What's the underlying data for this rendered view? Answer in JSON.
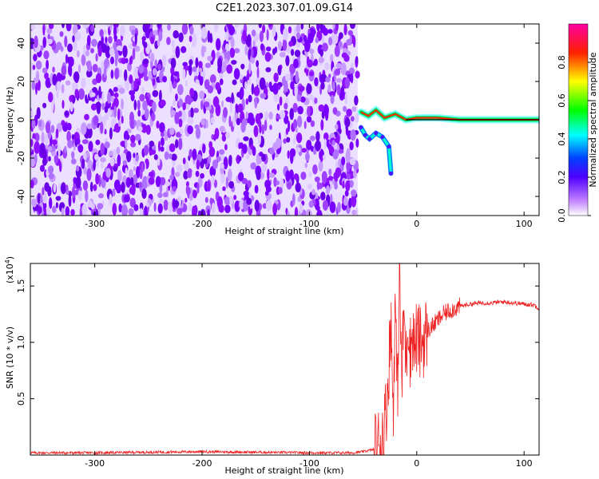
{
  "title": "C2E1.2023.307.01.09.G14",
  "chart_data": [
    {
      "type": "heatmap",
      "xlabel": "Height of straight line (km)",
      "ylabel": "Frequency (Hz)",
      "xlim": [
        -360,
        114
      ],
      "ylim": [
        -50,
        50
      ],
      "xticks": [
        -300,
        -200,
        -100,
        0,
        100
      ],
      "yticks": [
        -40,
        -20,
        0,
        20,
        40
      ],
      "noise_region_x": [
        -360,
        -55
      ],
      "signal_band": [
        {
          "x": -52,
          "y": 4
        },
        {
          "x": -45,
          "y": 2
        },
        {
          "x": -38,
          "y": 5
        },
        {
          "x": -30,
          "y": 1
        },
        {
          "x": -20,
          "y": 3
        },
        {
          "x": -10,
          "y": 0
        },
        {
          "x": 0,
          "y": 1
        },
        {
          "x": 20,
          "y": 1
        },
        {
          "x": 40,
          "y": 0
        },
        {
          "x": 60,
          "y": 0
        },
        {
          "x": 80,
          "y": 0
        },
        {
          "x": 100,
          "y": 0
        },
        {
          "x": 114,
          "y": 0
        }
      ],
      "signal_tail": [
        {
          "x": -52,
          "y": -4
        },
        {
          "x": -48,
          "y": -8
        },
        {
          "x": -44,
          "y": -10
        },
        {
          "x": -38,
          "y": -7
        },
        {
          "x": -32,
          "y": -9
        },
        {
          "x": -26,
          "y": -14
        },
        {
          "x": -24,
          "y": -28
        }
      ],
      "colorbar": {
        "label": "Normalized spectral amplitude",
        "range": [
          0,
          1
        ],
        "ticks": [
          "0.0",
          "0.2",
          "0.4",
          "0.6",
          "0.8"
        ],
        "colors": [
          "#ffffff",
          "#8f00ff",
          "#0000ff",
          "#00ffff",
          "#00ff00",
          "#ffff00",
          "#ff0000",
          "#ff00aa"
        ]
      }
    },
    {
      "type": "line",
      "xlabel": "Height of straight line (km)",
      "ylabel": "SNR (10 * v/v)",
      "yscale_label": "(x10",
      "yscale_exp": "4",
      "yscale_close": ")",
      "xlim": [
        -360,
        114
      ],
      "ylim": [
        0,
        1.7
      ],
      "xticks": [
        -300,
        -200,
        -100,
        0,
        100
      ],
      "yticks": [
        "0.5",
        "1.0",
        "1.5"
      ],
      "color": "#ee2222",
      "series": [
        {
          "values_x": [
            -360,
            -300,
            -200,
            -100,
            -60,
            -50,
            -40,
            -35,
            -30,
            -27,
            -24,
            -22,
            -20,
            -18,
            -16,
            -14,
            -12,
            -10,
            -8,
            -6,
            -4,
            -2,
            0,
            2,
            5,
            10,
            15,
            20,
            25,
            30,
            35,
            40,
            50,
            60,
            70,
            80,
            90,
            100,
            110,
            114
          ],
          "values_y": [
            0.02,
            0.02,
            0.03,
            0.02,
            0.02,
            0.03,
            0.05,
            0.1,
            0.25,
            0.6,
            1.2,
            0.4,
            1.35,
            0.5,
            1.7,
            0.6,
            1.3,
            0.8,
            1.25,
            0.9,
            1.1,
            0.95,
            1.05,
            1.0,
            1.0,
            1.1,
            1.15,
            1.2,
            1.25,
            1.28,
            1.3,
            1.32,
            1.34,
            1.35,
            1.35,
            1.36,
            1.35,
            1.34,
            1.33,
            1.3
          ]
        }
      ]
    }
  ]
}
